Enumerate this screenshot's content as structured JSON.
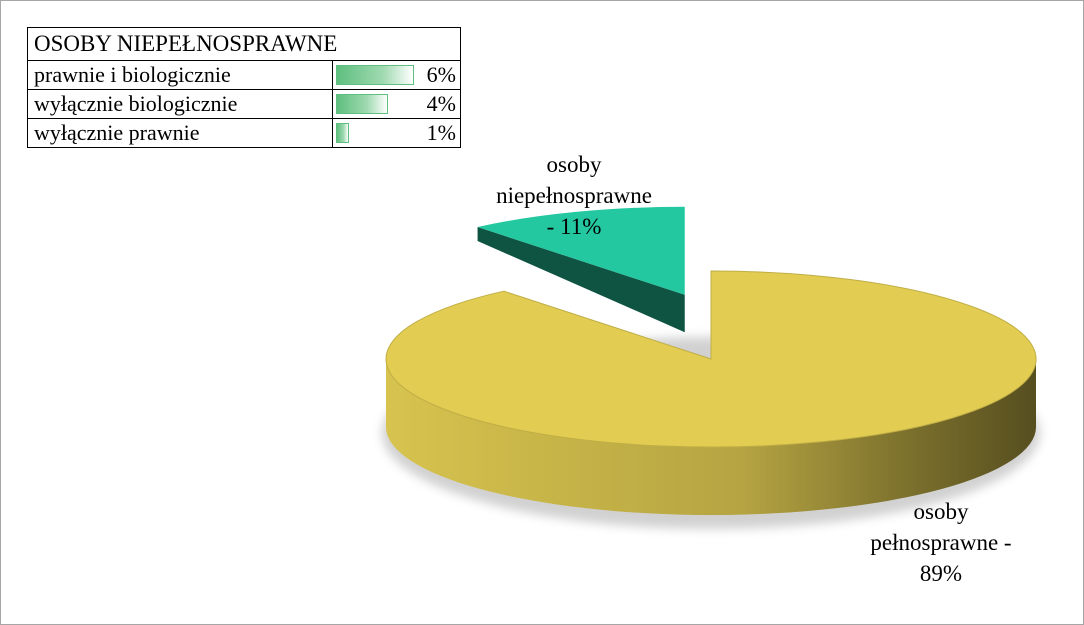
{
  "table": {
    "title": "OSOBY NIEPEŁNOSPRAWNE",
    "rows": [
      {
        "label": "prawnie i biologicznie",
        "value": "6%",
        "fraction": 0.06
      },
      {
        "label": "wyłącznie biologicznie",
        "value": "4%",
        "fraction": 0.04
      },
      {
        "label": "wyłącznie prawnie",
        "value": "1%",
        "fraction": 0.01
      }
    ],
    "bar_color": "#5fbf7f"
  },
  "chart_data": {
    "type": "pie",
    "title": "",
    "slices": [
      {
        "label": "osoby pełnosprawne",
        "value": 89,
        "color": "#e2cd52"
      },
      {
        "label": "osoby niepełnosprawne",
        "value": 11,
        "color": "#23c8a0"
      }
    ],
    "data_labels": [
      [
        "osoby",
        "pełnosprawne -",
        "89%"
      ],
      [
        "osoby",
        "niepełnosprawne",
        "- 11%"
      ]
    ],
    "exploded_slice": "osoby niepełnosprawne",
    "style": "3d"
  }
}
